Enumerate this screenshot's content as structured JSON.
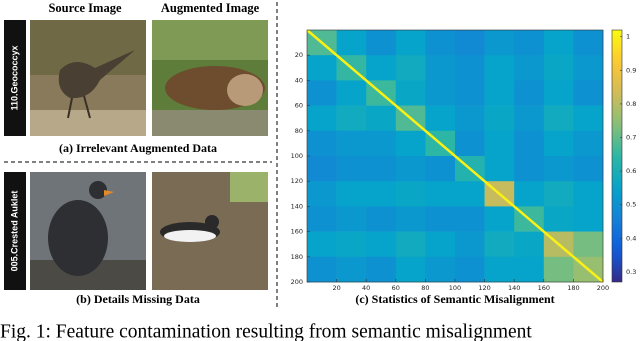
{
  "figure": {
    "panel_a": {
      "source_heading": "Source Image",
      "augmented_heading": "Augmented Image",
      "class_label": "110.Geococcyx",
      "caption": "(a) Irrelevant Augmented Data"
    },
    "panel_b": {
      "class_label": "005.Crested Auklet",
      "caption": "(b) Details Missing Data"
    },
    "panel_c": {
      "caption": "(c) Statistics of Semantic Misalignment",
      "lim": [
        0,
        200
      ],
      "xticks": [
        20,
        40,
        60,
        80,
        100,
        120,
        140,
        160,
        180,
        200
      ],
      "yticks": [
        20,
        40,
        60,
        80,
        100,
        120,
        140,
        160,
        180,
        200
      ],
      "colorbar_lim": [
        0.27,
        1.02
      ],
      "colorbar_ticks": [
        0.3,
        0.4,
        0.5,
        0.6,
        0.7,
        0.8,
        0.9,
        1
      ],
      "colormap": [
        "#352a87",
        "#0f5cdd",
        "#1481d6",
        "#06a4ca",
        "#2eb7a4",
        "#87bf77",
        "#d1bb59",
        "#fec832",
        "#f9fb0e"
      ],
      "diagonal_value": 1,
      "matrix": [
        [
          0.68,
          0.55,
          0.5,
          0.55,
          0.5,
          0.48,
          0.52,
          0.5,
          0.55,
          0.5
        ],
        [
          0.55,
          0.65,
          0.55,
          0.58,
          0.52,
          0.5,
          0.55,
          0.52,
          0.56,
          0.52
        ],
        [
          0.5,
          0.55,
          0.66,
          0.56,
          0.52,
          0.5,
          0.55,
          0.5,
          0.55,
          0.5
        ],
        [
          0.55,
          0.58,
          0.56,
          0.68,
          0.55,
          0.52,
          0.56,
          0.52,
          0.58,
          0.55
        ],
        [
          0.5,
          0.52,
          0.52,
          0.55,
          0.64,
          0.5,
          0.55,
          0.5,
          0.55,
          0.52
        ],
        [
          0.48,
          0.5,
          0.5,
          0.52,
          0.5,
          0.62,
          0.55,
          0.5,
          0.52,
          0.5
        ],
        [
          0.52,
          0.55,
          0.55,
          0.56,
          0.55,
          0.55,
          0.82,
          0.55,
          0.58,
          0.55
        ],
        [
          0.5,
          0.52,
          0.5,
          0.52,
          0.5,
          0.5,
          0.55,
          0.66,
          0.56,
          0.55
        ],
        [
          0.55,
          0.56,
          0.55,
          0.58,
          0.55,
          0.52,
          0.58,
          0.56,
          0.8,
          0.72
        ],
        [
          0.5,
          0.52,
          0.5,
          0.55,
          0.52,
          0.5,
          0.55,
          0.55,
          0.72,
          0.76
        ]
      ]
    },
    "caption": "Fig. 1: Feature contamination resulting from semantic misalignment"
  }
}
